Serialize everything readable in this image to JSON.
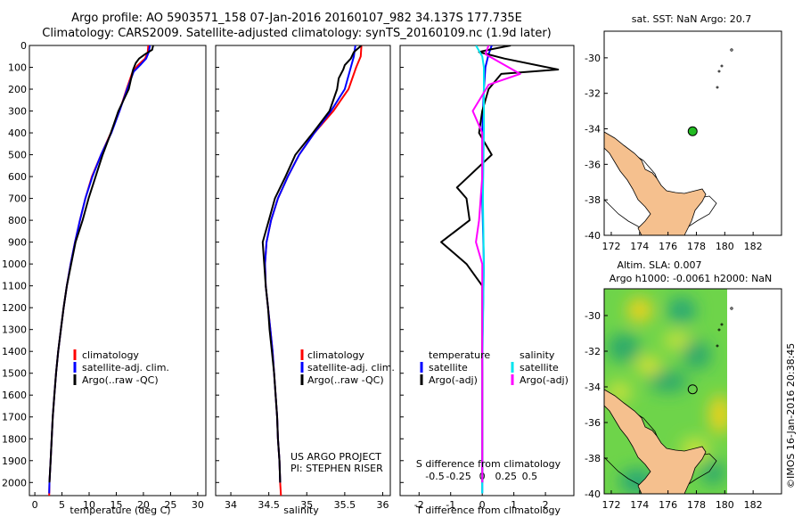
{
  "header": {
    "line1": "Argo profile: AO 5903571_158 07-Jan-2016 20160107_982 34.137S 177.735E",
    "line2": "Climatology: CARS2009. Satellite-adjusted climatology: synTS_20160109.nc (1.9d later)"
  },
  "colors": {
    "climatology": "#ff0000",
    "satellite_adj": "#0000ff",
    "argo": "#000000",
    "salinity_satellite": "#00e5ee",
    "salinity_argo": "#ff00ff",
    "land": "#f5c08e"
  },
  "depth_axis": {
    "ticks": [
      0,
      100,
      200,
      300,
      400,
      500,
      600,
      700,
      800,
      900,
      1000,
      1100,
      1200,
      1300,
      1400,
      1500,
      1600,
      1700,
      1800,
      1900,
      2000
    ],
    "ylim": [
      0,
      2060
    ]
  },
  "chart_data": [
    {
      "id": "temperature",
      "type": "line",
      "xlabel": "temperature (deg C)",
      "xlim": [
        -1,
        31.5
      ],
      "xticks": [
        {
          "v": 0,
          "l": "0"
        },
        {
          "v": 5,
          "l": "5"
        },
        {
          "v": 10,
          "l": "10"
        },
        {
          "v": 15,
          "l": "15"
        },
        {
          "v": 20,
          "l": "20"
        },
        {
          "v": 25,
          "l": "25"
        },
        {
          "v": 30,
          "l": "30"
        }
      ],
      "legend": [
        "climatology",
        "satellite-adj. clim.",
        "Argo(..raw -QC)"
      ],
      "series": [
        {
          "name": "climatology",
          "color": "#ff0000",
          "points": [
            [
              20.9,
              0
            ],
            [
              20.8,
              30
            ],
            [
              20.3,
              60
            ],
            [
              19.0,
              90
            ],
            [
              18.0,
              120
            ],
            [
              16.9,
              200
            ],
            [
              15.6,
              300
            ],
            [
              14.0,
              400
            ],
            [
              12.2,
              500
            ],
            [
              10.5,
              600
            ],
            [
              9.3,
              700
            ],
            [
              8.3,
              800
            ],
            [
              7.4,
              900
            ],
            [
              6.6,
              1000
            ],
            [
              5.9,
              1100
            ],
            [
              5.3,
              1200
            ],
            [
              4.8,
              1300
            ],
            [
              4.3,
              1400
            ],
            [
              3.9,
              1500
            ],
            [
              3.6,
              1600
            ],
            [
              3.3,
              1700
            ],
            [
              3.1,
              1800
            ],
            [
              2.9,
              1900
            ],
            [
              2.7,
              2000
            ],
            [
              2.65,
              2060
            ]
          ]
        },
        {
          "name": "satellite-adj. clim.",
          "color": "#0000ff",
          "points": [
            [
              21.2,
              0
            ],
            [
              21.0,
              30
            ],
            [
              20.5,
              60
            ],
            [
              19.4,
              90
            ],
            [
              18.2,
              120
            ],
            [
              17.0,
              200
            ],
            [
              15.6,
              300
            ],
            [
              14.1,
              400
            ],
            [
              12.2,
              500
            ],
            [
              10.6,
              600
            ],
            [
              9.3,
              700
            ],
            [
              8.3,
              800
            ],
            [
              7.4,
              900
            ],
            [
              6.6,
              1000
            ],
            [
              5.9,
              1100
            ],
            [
              5.3,
              1200
            ],
            [
              4.8,
              1300
            ],
            [
              4.3,
              1400
            ],
            [
              3.9,
              1500
            ],
            [
              3.6,
              1600
            ],
            [
              3.3,
              1700
            ],
            [
              3.1,
              1800
            ],
            [
              2.9,
              1900
            ],
            [
              2.7,
              2000
            ],
            [
              2.65,
              2050
            ]
          ]
        },
        {
          "name": "Argo(..raw -QC)",
          "color": "#000000",
          "points": [
            [
              21.8,
              0
            ],
            [
              21.6,
              20
            ],
            [
              20.3,
              40
            ],
            [
              19.2,
              60
            ],
            [
              18.6,
              80
            ],
            [
              18.1,
              110
            ],
            [
              17.3,
              200
            ],
            [
              15.4,
              300
            ],
            [
              14.0,
              400
            ],
            [
              12.5,
              500
            ],
            [
              11.2,
              600
            ],
            [
              9.9,
              700
            ],
            [
              8.8,
              800
            ],
            [
              7.5,
              900
            ],
            [
              6.7,
              1000
            ],
            [
              5.9,
              1100
            ],
            [
              5.3,
              1200
            ],
            [
              4.8,
              1300
            ],
            [
              4.3,
              1400
            ],
            [
              3.9,
              1500
            ],
            [
              3.6,
              1600
            ],
            [
              3.3,
              1700
            ],
            [
              3.1,
              1800
            ],
            [
              2.9,
              1900
            ],
            [
              2.7,
              2000
            ]
          ]
        }
      ]
    },
    {
      "id": "salinity",
      "type": "line",
      "xlabel": "salinity",
      "xlim": [
        33.8,
        36.1
      ],
      "xticks": [
        {
          "v": 34,
          "l": "34"
        },
        {
          "v": 34.5,
          "l": "34.5"
        },
        {
          "v": 35,
          "l": "35"
        },
        {
          "v": 35.5,
          "l": "35.5"
        },
        {
          "v": 36,
          "l": "36"
        }
      ],
      "legend": [
        "climatology",
        "satellite-adj. clim.",
        "Argo(..raw -QC)"
      ],
      "annotation": [
        "US ARGO PROJECT",
        "PI: STEPHEN RISER"
      ],
      "series": [
        {
          "name": "climatology",
          "color": "#ff0000",
          "points": [
            [
              35.72,
              0
            ],
            [
              35.71,
              50
            ],
            [
              35.65,
              100
            ],
            [
              35.55,
              200
            ],
            [
              35.35,
              300
            ],
            [
              35.1,
              400
            ],
            [
              34.9,
              500
            ],
            [
              34.75,
              600
            ],
            [
              34.62,
              700
            ],
            [
              34.53,
              800
            ],
            [
              34.47,
              900
            ],
            [
              34.45,
              1000
            ],
            [
              34.46,
              1100
            ],
            [
              34.49,
              1200
            ],
            [
              34.52,
              1300
            ],
            [
              34.55,
              1400
            ],
            [
              34.57,
              1500
            ],
            [
              34.59,
              1600
            ],
            [
              34.61,
              1700
            ],
            [
              34.62,
              1800
            ],
            [
              34.64,
              1900
            ],
            [
              34.65,
              2000
            ],
            [
              34.66,
              2060
            ]
          ]
        },
        {
          "name": "satellite-adj. clim.",
          "color": "#0000ff",
          "points": [
            [
              35.64,
              0
            ],
            [
              35.62,
              50
            ],
            [
              35.58,
              100
            ],
            [
              35.5,
              200
            ],
            [
              35.32,
              300
            ],
            [
              35.1,
              400
            ],
            [
              34.9,
              500
            ],
            [
              34.75,
              600
            ],
            [
              34.62,
              700
            ],
            [
              34.53,
              800
            ],
            [
              34.47,
              900
            ],
            [
              34.45,
              1000
            ],
            [
              34.46,
              1100
            ],
            [
              34.49,
              1200
            ],
            [
              34.52,
              1300
            ],
            [
              34.55,
              1400
            ],
            [
              34.57,
              1500
            ],
            [
              34.59,
              1600
            ],
            [
              34.61,
              1700
            ],
            [
              34.62,
              1800
            ],
            [
              34.64,
              1900
            ],
            [
              34.65,
              2000
            ]
          ]
        },
        {
          "name": "Argo(..raw -QC)",
          "color": "#000000",
          "points": [
            [
              35.72,
              0
            ],
            [
              35.62,
              30
            ],
            [
              35.58,
              60
            ],
            [
              35.5,
              90
            ],
            [
              35.48,
              110
            ],
            [
              35.42,
              150
            ],
            [
              35.4,
              200
            ],
            [
              35.3,
              300
            ],
            [
              35.08,
              400
            ],
            [
              34.85,
              500
            ],
            [
              34.72,
              600
            ],
            [
              34.58,
              700
            ],
            [
              34.5,
              800
            ],
            [
              34.42,
              900
            ],
            [
              34.44,
              1000
            ],
            [
              34.46,
              1100
            ],
            [
              34.49,
              1200
            ],
            [
              34.51,
              1300
            ],
            [
              34.54,
              1400
            ],
            [
              34.57,
              1500
            ],
            [
              34.59,
              1600
            ],
            [
              34.61,
              1700
            ],
            [
              34.62,
              1800
            ],
            [
              34.64,
              1900
            ],
            [
              34.65,
              2000
            ]
          ]
        }
      ]
    },
    {
      "id": "difference",
      "type": "line",
      "xlabel": "T difference from climatology",
      "top_label": "S difference from climatology",
      "xlim": [
        -2.6,
        2.9
      ],
      "xticks": [
        {
          "v": -2,
          "l": "-2"
        },
        {
          "v": -1,
          "l": "-1"
        },
        {
          "v": 0,
          "l": "0"
        },
        {
          "v": 1,
          "l": "1"
        },
        {
          "v": 2,
          "l": "2"
        }
      ],
      "sticks": [
        {
          "v": -1.5,
          "l": "-0.5"
        },
        {
          "v": -0.75,
          "l": "-0.25"
        },
        {
          "v": 0,
          "l": "0"
        },
        {
          "v": 0.75,
          "l": "0.25"
        },
        {
          "v": 1.5,
          "l": "0.5"
        }
      ],
      "legend_temperature": [
        "temperature",
        "satellite",
        "Argo(-adj)"
      ],
      "legend_salinity": [
        "salinity",
        "satellite",
        "Argo(-adj)"
      ],
      "series": [
        {
          "name": "T satellite",
          "color": "#0000ff",
          "points": [
            [
              0.3,
              0
            ],
            [
              0.2,
              40
            ],
            [
              0.1,
              100
            ],
            [
              0.05,
              200
            ],
            [
              0,
              400
            ],
            [
              0,
              700
            ],
            [
              0.05,
              1000
            ],
            [
              0,
              1400
            ],
            [
              0,
              2050
            ]
          ]
        },
        {
          "name": "T Argo(-adj)",
          "color": "#000000",
          "points": [
            [
              0.9,
              0
            ],
            [
              0.2,
              20
            ],
            [
              -0.1,
              30
            ],
            [
              0.7,
              60
            ],
            [
              2.4,
              110
            ],
            [
              0.6,
              130
            ],
            [
              0.2,
              200
            ],
            [
              0.0,
              300
            ],
            [
              -0.1,
              400
            ],
            [
              0.3,
              500
            ],
            [
              -0.8,
              650
            ],
            [
              -0.5,
              700
            ],
            [
              -0.4,
              800
            ],
            [
              -1.3,
              900
            ],
            [
              -0.5,
              1000
            ],
            [
              0.0,
              1100
            ],
            [
              0.0,
              1300
            ],
            [
              0.0,
              1500
            ],
            [
              0.0,
              1800
            ],
            [
              0.0,
              2000
            ]
          ]
        },
        {
          "name": "S satellite",
          "color": "#00e5ee",
          "points": [
            [
              -0.2,
              0
            ],
            [
              0.0,
              50
            ],
            [
              0.05,
              100
            ],
            [
              0.05,
              200
            ],
            [
              0.05,
              400
            ],
            [
              0.02,
              700
            ],
            [
              0.05,
              1000
            ],
            [
              0,
              1500
            ],
            [
              0,
              2050
            ]
          ]
        },
        {
          "name": "S Argo(-adj)",
          "color": "#ff00ff",
          "points": [
            [
              0.2,
              0
            ],
            [
              0.1,
              40
            ],
            [
              1.2,
              130
            ],
            [
              0.2,
              180
            ],
            [
              -0.3,
              300
            ],
            [
              0.0,
              400
            ],
            [
              0.0,
              600
            ],
            [
              -0.1,
              800
            ],
            [
              -0.2,
              900
            ],
            [
              0.0,
              1000
            ],
            [
              0.0,
              1300
            ],
            [
              0.0,
              1500
            ],
            [
              0.0,
              1800
            ],
            [
              0.0,
              2000
            ]
          ]
        }
      ]
    },
    {
      "id": "sst_map",
      "type": "scatter",
      "title": "sat. SST: NaN Argo: 20.7",
      "xlim": [
        171.5,
        184
      ],
      "ylim": [
        -40,
        -28.5
      ],
      "xticks": [
        172,
        174,
        176,
        178,
        180,
        182
      ],
      "yticks": [
        -30,
        -32,
        -34,
        -36,
        -38,
        -40
      ],
      "points": [
        {
          "lon": 177.735,
          "lat": -34.137,
          "color": "#22bb22"
        }
      ]
    },
    {
      "id": "sla_map",
      "type": "heatmap",
      "title_line1": "Altim. SLA: 0.007",
      "title_line2": "Argo h1000: -0.0061 h2000: NaN",
      "xlim": [
        171.5,
        184
      ],
      "ylim": [
        -40,
        -28.5
      ],
      "xticks": [
        172,
        174,
        176,
        178,
        180,
        182
      ],
      "yticks": [
        -30,
        -32,
        -34,
        -36,
        -38,
        -40
      ],
      "points": [
        {
          "lon": 177.735,
          "lat": -34.137,
          "color": "none"
        }
      ]
    }
  ],
  "credit": "©IMOS 16-Jan-2016 20:38:45"
}
